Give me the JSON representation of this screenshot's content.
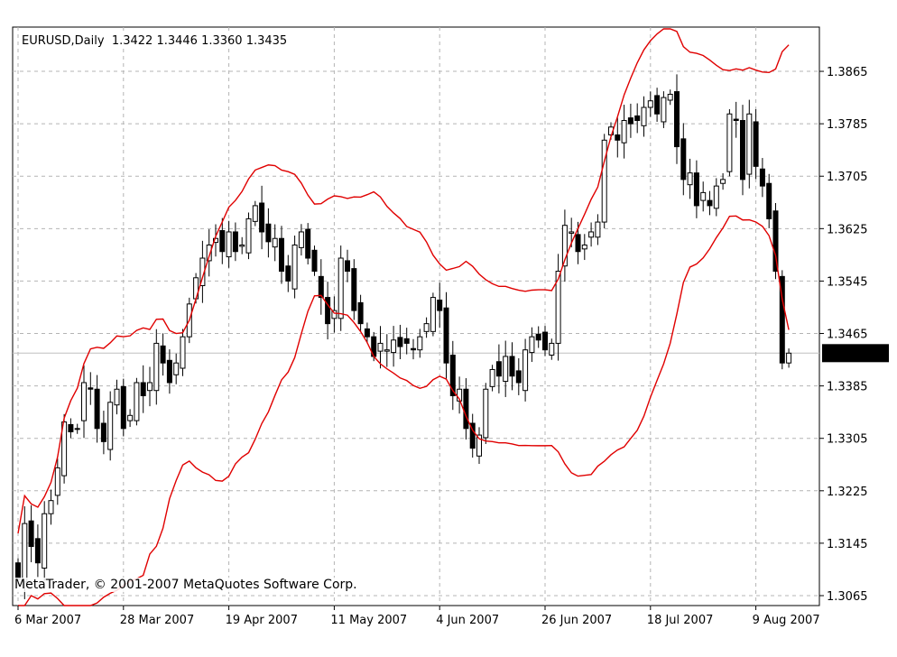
{
  "header": {
    "symbol": "EURUSD,Daily",
    "ohlc": "1.3422 1.3446 1.3360 1.3435"
  },
  "copyright": "MetaTrader, © 2001-2007 MetaQuotes Software Corp.",
  "colors": {
    "background": "#ffffff",
    "grid": "#b4b4b4",
    "bands": "#e00000",
    "candle": "#000000",
    "price_line": "#c0c0c0",
    "current_bg": "#000000",
    "current_fg": "#ffffff"
  },
  "chart_data": {
    "type": "candlestick",
    "title": "EURUSD,Daily",
    "ylim": [
      1.3065,
      1.3905
    ],
    "yticks": [
      "1.3865",
      "1.3785",
      "1.3705",
      "1.3625",
      "1.3545",
      "1.3465",
      "1.3385",
      "1.3305",
      "1.3225",
      "1.3145",
      "1.3065"
    ],
    "xticks": [
      {
        "label": "6 Mar 2007",
        "index": 0
      },
      {
        "label": "28 Mar 2007",
        "index": 16
      },
      {
        "label": "19 Apr 2007",
        "index": 32
      },
      {
        "label": "11 May 2007",
        "index": 48
      },
      {
        "label": "4 Jun 2007",
        "index": 64
      },
      {
        "label": "26 Jun 2007",
        "index": 80
      },
      {
        "label": "18 Jul 2007",
        "index": 96
      },
      {
        "label": "9 Aug 2007",
        "index": 112
      }
    ],
    "current_price": "1.3435",
    "grid": true,
    "indicator": "Bollinger Bands",
    "closes": [
      1.309,
      1.3175,
      1.314,
      1.3115,
      1.319,
      1.321,
      1.326,
      1.333,
      1.3315,
      1.332,
      1.339,
      1.338,
      1.332,
      1.33,
      1.336,
      1.338,
      1.332,
      1.334,
      1.339,
      1.337,
      1.339,
      1.345,
      1.342,
      1.339,
      1.342,
      1.346,
      1.351,
      1.355,
      1.358,
      1.36,
      1.361,
      1.359,
      1.362,
      1.359,
      1.36,
      1.364,
      1.366,
      1.362,
      1.3605,
      1.361,
      1.356,
      1.3545,
      1.36,
      1.362,
      1.358,
      1.356,
      1.352,
      1.348,
      1.35,
      1.358,
      1.356,
      1.35,
      1.348,
      1.346,
      1.343,
      1.345,
      1.344,
      1.3455,
      1.3445,
      1.345,
      1.344,
      1.346,
      1.348,
      1.352,
      1.35,
      1.342,
      1.337,
      1.338,
      1.332,
      1.329,
      1.331,
      1.338,
      1.341,
      1.34,
      1.343,
      1.34,
      1.339,
      1.344,
      1.346,
      1.3455,
      1.344,
      1.345,
      1.356,
      1.363,
      1.362,
      1.359,
      1.36,
      1.362,
      1.3635,
      1.376,
      1.378,
      1.376,
      1.379,
      1.3785,
      1.379,
      1.381,
      1.382,
      1.38,
      1.3825,
      1.383,
      1.375,
      1.37,
      1.371,
      1.366,
      1.368,
      1.366,
      1.369,
      1.37,
      1.38,
      1.379,
      1.37,
      1.38,
      1.372,
      1.369,
      1.364,
      1.356,
      1.342,
      1.3435
    ]
  }
}
